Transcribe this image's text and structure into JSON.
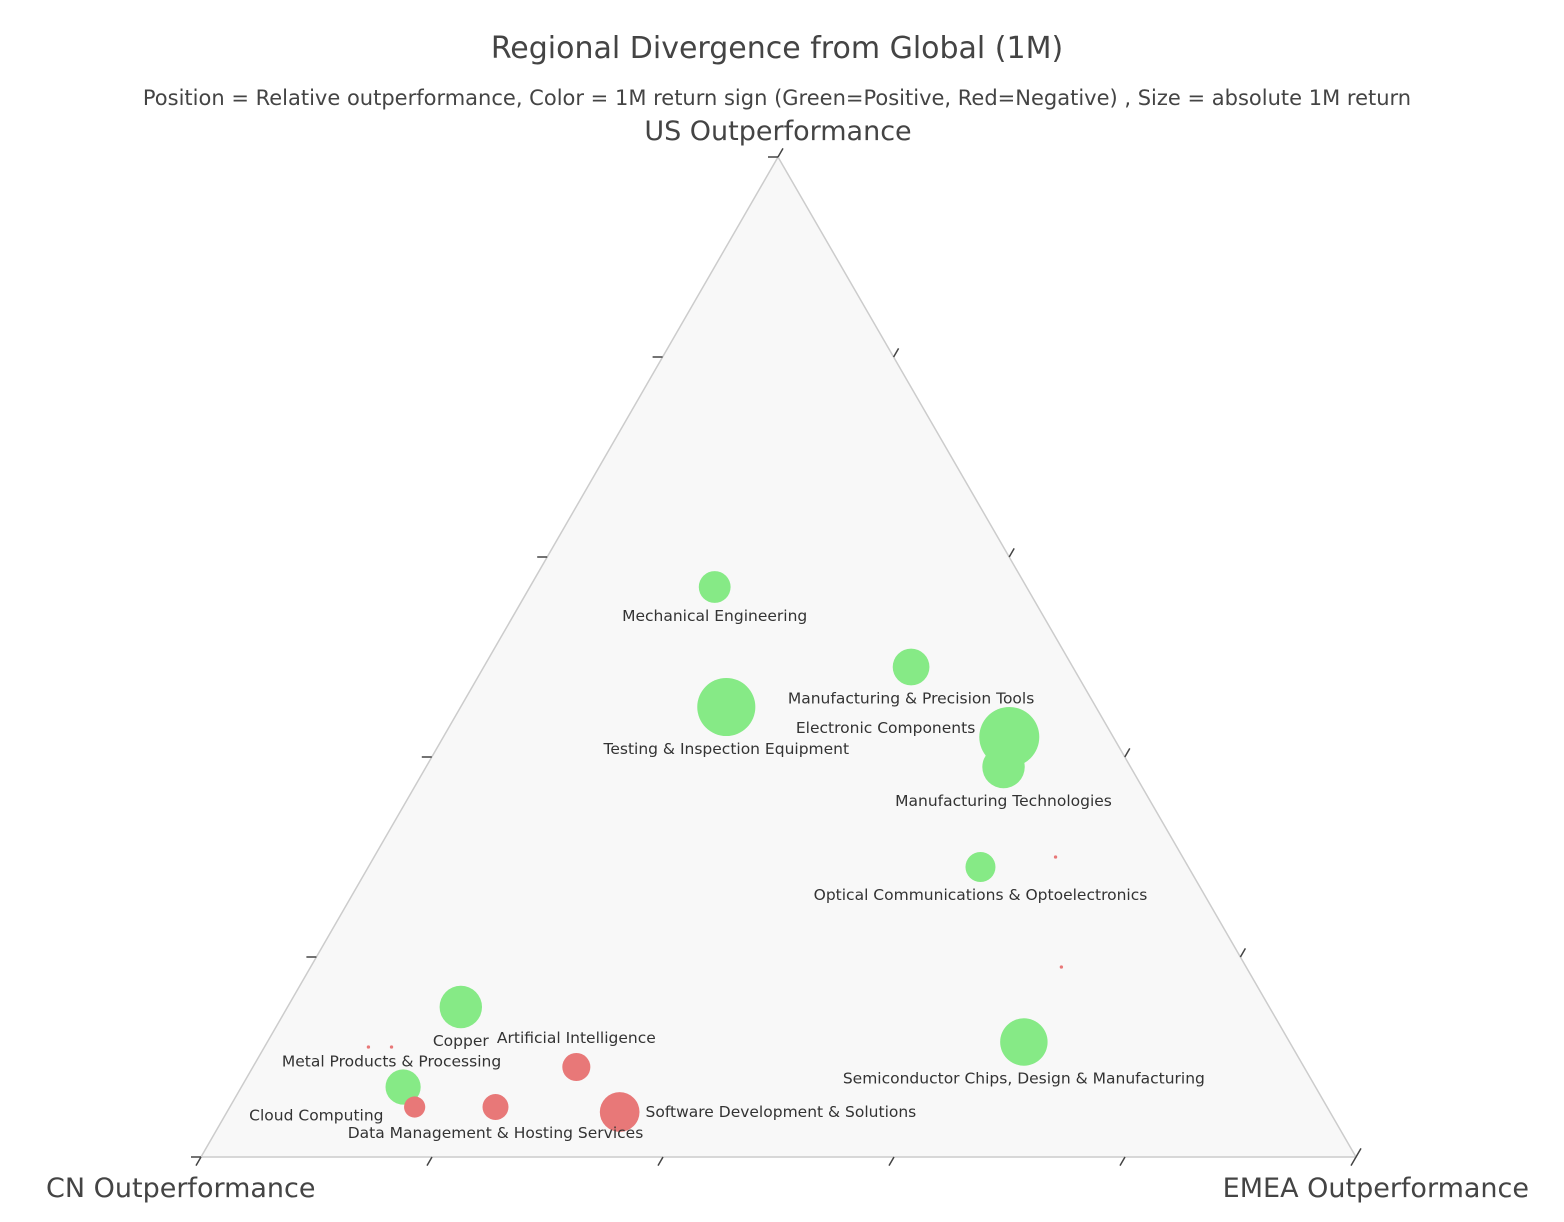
{
  "chart_data": {
    "type": "scatter",
    "subtype": "ternary",
    "title": "Regional Divergence from Global (1M)",
    "subtitle": "Position = Relative outperformance, Color = 1M return sign (Green=Positive, Red=Negative) , Size = absolute 1M return",
    "axes": {
      "a": "US Outperformance",
      "b": "CN Outperformance",
      "c": "EMEA Outperformance"
    },
    "ticks_per_axis": 5,
    "legend": "none",
    "colors": {
      "positive": "#86ea86",
      "negative": "#e87878",
      "plot_bg": "#f8f8f8",
      "frame": "#cccccc"
    },
    "points": [
      {
        "name": "Mechanical Engineering",
        "a": 0.57,
        "b": 0.27,
        "c": 0.16,
        "sign": "positive",
        "abs_return": 0.9,
        "label_pos": "below"
      },
      {
        "name": "Testing & Inspection Equipment",
        "a": 0.45,
        "b": 0.32,
        "c": 0.23,
        "sign": "positive",
        "abs_return": 3.0,
        "label_pos": "below"
      },
      {
        "name": "Manufacturing & Precision Tools",
        "a": 0.49,
        "b": 0.14,
        "c": 0.37,
        "sign": "positive",
        "abs_return": 1.2,
        "label_pos": "below"
      },
      {
        "name": "Electronic Components",
        "a": 0.42,
        "b": 0.09,
        "c": 0.49,
        "sign": "positive",
        "abs_return": 3.2,
        "label_pos": "top-left"
      },
      {
        "name": "Manufacturing Technologies",
        "a": 0.39,
        "b": 0.11,
        "c": 0.5,
        "sign": "positive",
        "abs_return": 1.6,
        "label_pos": "below"
      },
      {
        "name": "Optical Communications & Optoelectronics",
        "a": 0.29,
        "b": 0.18,
        "c": 0.53,
        "sign": "positive",
        "abs_return": 0.8,
        "label_pos": "below"
      },
      {
        "name": "",
        "a": 0.3,
        "b": 0.11,
        "c": 0.59,
        "sign": "negative",
        "abs_return": 0.01,
        "label_pos": "none"
      },
      {
        "name": "",
        "a": 0.19,
        "b": 0.16,
        "c": 0.65,
        "sign": "negative",
        "abs_return": 0.01,
        "label_pos": "none"
      },
      {
        "name": "Copper",
        "a": 0.15,
        "b": 0.7,
        "c": 0.15,
        "sign": "positive",
        "abs_return": 1.6,
        "label_pos": "below"
      },
      {
        "name": "",
        "a": 0.11,
        "b": 0.8,
        "c": 0.09,
        "sign": "negative",
        "abs_return": 0.01,
        "label_pos": "none"
      },
      {
        "name": "Metal Products & Processing",
        "a": 0.11,
        "b": 0.78,
        "c": 0.11,
        "sign": "negative",
        "abs_return": 0.01,
        "label_pos": "below"
      },
      {
        "name": "Cloud Computing",
        "a": 0.07,
        "b": 0.79,
        "c": 0.14,
        "sign": "positive",
        "abs_return": 1.1,
        "label_pos": "bottom-left"
      },
      {
        "name": "",
        "a": 0.05,
        "b": 0.79,
        "c": 0.16,
        "sign": "negative",
        "abs_return": 0.4,
        "label_pos": "none"
      },
      {
        "name": "Data Management & Hosting Services",
        "a": 0.05,
        "b": 0.72,
        "c": 0.23,
        "sign": "negative",
        "abs_return": 0.6,
        "label_pos": "below"
      },
      {
        "name": "Artificial Intelligence",
        "a": 0.09,
        "b": 0.63,
        "c": 0.28,
        "sign": "negative",
        "abs_return": 0.7,
        "label_pos": "above"
      },
      {
        "name": "Software Development & Solutions",
        "a": 0.045,
        "b": 0.615,
        "c": 0.34,
        "sign": "negative",
        "abs_return": 1.4,
        "label_pos": "right"
      },
      {
        "name": "Semiconductor Chips, Design & Manufacturing",
        "a": 0.115,
        "b": 0.23,
        "c": 0.655,
        "sign": "positive",
        "abs_return": 2.0,
        "label_pos": "below"
      }
    ]
  }
}
